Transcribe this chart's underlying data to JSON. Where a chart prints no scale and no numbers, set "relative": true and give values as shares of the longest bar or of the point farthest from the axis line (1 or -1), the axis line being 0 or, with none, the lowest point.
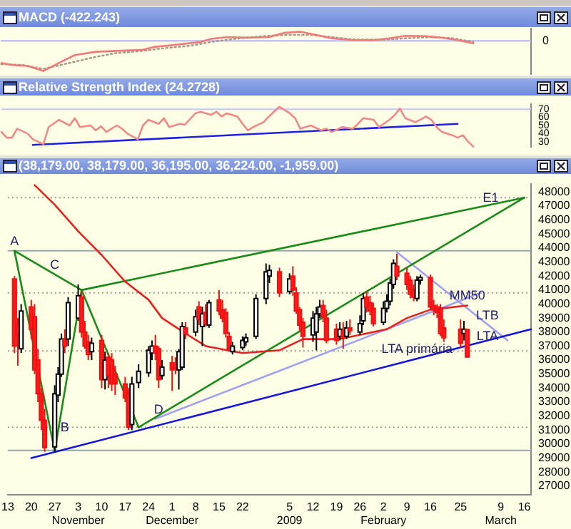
{
  "chart_data": [
    {
      "type": "line",
      "title": "MACD (-422.243)",
      "relative": true,
      "tick_labels": false,
      "categories": [
        null,
        null,
        null,
        null,
        null,
        null,
        null,
        null,
        null,
        null,
        null,
        null,
        null,
        null,
        null,
        null,
        null,
        null,
        null,
        null,
        null,
        null,
        null,
        null,
        null,
        null,
        null,
        null,
        null,
        null,
        null,
        null,
        null,
        null,
        null,
        null,
        null,
        null,
        null,
        null,
        null,
        null,
        null,
        null,
        null,
        null,
        null,
        null,
        null,
        null,
        null,
        null,
        null,
        null,
        null,
        null,
        null,
        null,
        null,
        null,
        null,
        null,
        null,
        null,
        null,
        null,
        null,
        null,
        null,
        null,
        null,
        null,
        null,
        null,
        null,
        null,
        null,
        null,
        null,
        null,
        null,
        null,
        null,
        null,
        null,
        null,
        null,
        null,
        null,
        null,
        null,
        null,
        null,
        null,
        null,
        null,
        null,
        null,
        null,
        null,
        null,
        null
      ],
      "ref_lines": [
        {
          "axis": "y",
          "value": 0,
          "label": "0",
          "color": "#c4c4ec"
        }
      ],
      "series": [
        {
          "color": "#f07a7a",
          "values": [
            -0.73,
            null,
            -0.8,
            null,
            null,
            -0.83,
            null,
            null,
            -1,
            null,
            null,
            -0.73,
            null,
            null,
            -0.47,
            null,
            null,
            null,
            -0.36,
            null,
            null,
            null,
            -0.33,
            null,
            null,
            null,
            null,
            -0.29,
            null,
            -0.2,
            null,
            null,
            null,
            -0.13,
            null,
            null,
            null,
            null,
            -0.03,
            null,
            0.07,
            null,
            null,
            0.13,
            null,
            null,
            null,
            0.11,
            null,
            null,
            null,
            0.13,
            null,
            null,
            0.27,
            null,
            null,
            0.31,
            null,
            null,
            0.2,
            null,
            null,
            0.09,
            null,
            null,
            null,
            0.03,
            null,
            null,
            null,
            0.03,
            null,
            null,
            0.09,
            null,
            null,
            0.17,
            null,
            null,
            null,
            0.16,
            null,
            null,
            0.11,
            null,
            null,
            0.03,
            null,
            null,
            -0.08,
            null,
            null,
            null,
            null,
            null,
            null,
            null,
            null,
            null,
            null,
            null
          ]
        },
        {
          "color": "#a89a88",
          "line_style": "dotted",
          "values": [
            -0.77,
            null,
            null,
            null,
            -0.8,
            null,
            null,
            null,
            -0.93,
            null,
            null,
            null,
            null,
            -0.73,
            null,
            null,
            null,
            null,
            -0.53,
            null,
            null,
            null,
            -0.4,
            null,
            null,
            null,
            null,
            -0.33,
            null,
            null,
            null,
            -0.24,
            null,
            null,
            null,
            null,
            -0.16,
            null,
            null,
            null,
            -0.03,
            null,
            null,
            null,
            null,
            0.08,
            null,
            null,
            null,
            null,
            0.16,
            null,
            null,
            null,
            0.2,
            null,
            null,
            null,
            null,
            0.2,
            null,
            null,
            null,
            0.13,
            null,
            null,
            null,
            0.05,
            null,
            null,
            null,
            null,
            null,
            0.04,
            null,
            null,
            null,
            0.09,
            null,
            null,
            null,
            null,
            0.13,
            null,
            null,
            null,
            0.09,
            null,
            null,
            null,
            -0.03,
            null,
            null,
            null,
            null,
            null,
            null,
            null,
            null,
            null,
            null,
            null
          ]
        }
      ]
    },
    {
      "type": "line",
      "title": "Relative Strength Index (24.2728)",
      "tick_labels": "y",
      "ylim": [
        24,
        76
      ],
      "yticks": [
        30,
        40,
        50,
        60,
        70
      ],
      "categories": [
        null,
        null,
        null,
        null,
        null,
        null,
        null,
        null,
        null,
        null,
        null,
        null,
        null,
        null,
        null,
        null,
        null,
        null,
        null,
        null,
        null,
        null,
        null,
        null,
        null,
        null,
        null,
        null,
        null,
        null,
        null,
        null,
        null,
        null,
        null,
        null,
        null,
        null,
        null,
        null,
        null,
        null,
        null,
        null,
        null,
        null,
        null,
        null,
        null,
        null,
        null,
        null,
        null,
        null,
        null,
        null,
        null,
        null,
        null,
        null,
        null,
        null,
        null,
        null,
        null,
        null,
        null,
        null,
        null,
        null,
        null,
        null,
        null,
        null,
        null,
        null,
        null,
        null,
        null,
        null,
        null,
        null,
        null,
        null,
        null,
        null,
        null,
        null,
        null,
        null,
        null,
        null,
        null,
        null,
        null,
        null,
        null,
        null,
        null,
        null,
        null,
        null
      ],
      "ref_lines": [
        {
          "axis": "y",
          "value": 70,
          "color": "#c4c4ec"
        }
      ],
      "series": [
        {
          "color": "#f08888",
          "values": [
            42,
            35,
            35,
            46,
            null,
            40,
            33,
            null,
            27,
            48,
            null,
            57,
            null,
            50,
            59,
            48,
            null,
            50,
            44,
            49,
            42,
            null,
            50,
            46,
            40,
            null,
            33,
            50,
            57,
            null,
            52,
            59,
            48,
            null,
            52,
            51,
            null,
            65,
            67,
            null,
            63,
            67,
            61,
            65,
            null,
            61,
            52,
            44,
            48,
            null,
            54,
            61,
            null,
            73,
            null,
            65,
            59,
            46,
            null,
            50,
            null,
            44,
            46,
            42,
            null,
            48,
            null,
            46,
            52,
            59,
            null,
            57,
            48,
            null,
            57,
            63,
            71,
            59,
            null,
            54,
            null,
            61,
            57,
            48,
            42,
            null,
            38,
            35,
            38,
            30,
            24,
            null,
            null,
            null,
            null,
            null,
            null,
            null,
            null,
            null,
            null,
            null
          ]
        },
        {
          "color": "#2020e0",
          "values": [
            null,
            null,
            null,
            null,
            null,
            null,
            26,
            null,
            null,
            null,
            null,
            null,
            null,
            null,
            null,
            null,
            null,
            null,
            null,
            null,
            null,
            null,
            null,
            null,
            null,
            null,
            null,
            null,
            null,
            null,
            null,
            null,
            null,
            null,
            null,
            null,
            null,
            null,
            null,
            null,
            null,
            null,
            null,
            null,
            null,
            null,
            null,
            null,
            null,
            null,
            null,
            null,
            null,
            null,
            null,
            null,
            null,
            null,
            null,
            null,
            null,
            null,
            null,
            null,
            null,
            null,
            null,
            null,
            null,
            null,
            null,
            null,
            null,
            null,
            null,
            null,
            null,
            null,
            null,
            null,
            null,
            null,
            null,
            null,
            null,
            null,
            null,
            52,
            null,
            null,
            null,
            null,
            null,
            null,
            null,
            null,
            null,
            null,
            null,
            null,
            null,
            null
          ]
        }
      ]
    },
    {
      "type": "candlestick",
      "title": "(38,179.00, 38,179.00, 36,195.00, 36,224.00, -1,959.00)",
      "xlim": [
        "2008-10-13",
        "2009-03-18"
      ],
      "ylim": [
        26400,
        48600
      ],
      "xticks": [
        {
          "value": "2008-10-13",
          "label": "13"
        },
        {
          "value": "2008-10-20",
          "label": "20"
        },
        {
          "value": "2008-10-27",
          "label": "27"
        },
        {
          "value": "2008-11-03",
          "label": "3\nNovember"
        },
        {
          "value": "2008-11-10",
          "label": "10"
        },
        {
          "value": "2008-11-17",
          "label": "17"
        },
        {
          "value": "2008-11-24",
          "label": "24"
        },
        {
          "value": "2008-12-01",
          "label": "1\nDecember"
        },
        {
          "value": "2008-12-08",
          "label": "8"
        },
        {
          "value": "2008-12-15",
          "label": "15"
        },
        {
          "value": "2008-12-22",
          "label": "22"
        },
        {
          "value": "2009-01-05",
          "label": "5\n2009"
        },
        {
          "value": "2009-01-12",
          "label": "12"
        },
        {
          "value": "2009-01-19",
          "label": "19"
        },
        {
          "value": "2009-01-26",
          "label": "26"
        },
        {
          "value": "2009-02-02",
          "label": "2\nFebruary"
        },
        {
          "value": "2009-02-09",
          "label": "9"
        },
        {
          "value": "2009-02-16",
          "label": "16"
        },
        {
          "value": "2009-02-25",
          "label": "25"
        },
        {
          "value": "2009-03-09",
          "label": "9\nMarch"
        },
        {
          "value": "2009-03-16",
          "label": "16"
        }
      ],
      "yticks": [
        27000,
        28000,
        29000,
        30000,
        31000,
        32000,
        33000,
        34000,
        35000,
        36000,
        37000,
        38000,
        39000,
        40000,
        41000,
        42000,
        43000,
        44000,
        45000,
        46000,
        47000,
        48000
      ],
      "x": [
        "2008-10-15",
        "2008-10-16",
        "2008-10-17",
        "2008-10-20",
        "2008-10-21",
        "2008-10-22",
        "2008-10-23",
        "2008-10-24",
        "2008-10-27",
        "2008-10-28",
        "2008-10-29",
        "2008-10-30",
        "2008-10-31",
        "2008-11-03",
        "2008-11-04",
        "2008-11-05",
        "2008-11-06",
        "2008-11-07",
        "2008-11-10",
        "2008-11-11",
        "2008-11-12",
        "2008-11-13",
        "2008-11-14",
        "2008-11-17",
        "2008-11-18",
        "2008-11-19",
        "2008-11-21",
        "2008-11-24",
        "2008-11-25",
        "2008-11-26",
        "2008-11-27",
        "2008-11-28",
        "2008-12-01",
        "2008-12-02",
        "2008-12-03",
        "2008-12-04",
        "2008-12-05",
        "2008-12-08",
        "2008-12-09",
        "2008-12-10",
        "2008-12-11",
        "2008-12-12",
        "2008-12-15",
        "2008-12-16",
        "2008-12-17",
        "2008-12-18",
        "2008-12-19",
        "2008-12-22",
        "2008-12-23",
        "2008-12-26",
        "2008-12-29",
        "2008-12-30",
        "2009-01-02",
        "2009-01-05",
        "2009-01-06",
        "2009-01-07",
        "2009-01-08",
        "2009-01-09",
        "2009-01-12",
        "2009-01-13",
        "2009-01-14",
        "2009-01-15",
        "2009-01-16",
        "2009-01-19",
        "2009-01-20",
        "2009-01-21",
        "2009-01-22",
        "2009-01-23",
        "2009-01-26",
        "2009-01-27",
        "2009-01-28",
        "2009-01-29",
        "2009-01-30",
        "2009-02-02",
        "2009-02-03",
        "2009-02-04",
        "2009-02-05",
        "2009-02-06",
        "2009-02-09",
        "2009-02-10",
        "2009-02-11",
        "2009-02-12",
        "2009-02-13",
        "2009-02-16",
        "2009-02-17",
        "2009-02-18",
        "2009-02-19",
        "2009-02-20",
        "2009-02-25",
        "2009-02-26",
        "2009-02-27"
      ],
      "ohlc": [
        [
          41800,
          42000,
          36500,
          37000
        ],
        [
          38500,
          39000,
          35600,
          37800
        ],
        [
          36800,
          40000,
          36500,
          39500
        ],
        [
          39800,
          40300,
          37500,
          38200
        ],
        [
          39100,
          40000,
          35000,
          35300
        ],
        [
          36000,
          36800,
          33000,
          33600
        ],
        [
          33600,
          34000,
          31000,
          31700
        ],
        [
          31700,
          32500,
          29450,
          29750
        ],
        [
          29800,
          34200,
          29450,
          33600
        ],
        [
          33500,
          35500,
          33000,
          35000
        ],
        [
          35000,
          37900,
          34800,
          37500
        ],
        [
          37500,
          38200,
          36500,
          37000
        ],
        [
          37500,
          40500,
          37000,
          40100
        ],
        [
          39000,
          41400,
          38800,
          40600
        ],
        [
          40500,
          40900,
          37600,
          38000
        ],
        [
          38000,
          38800,
          36800,
          37000
        ],
        [
          37300,
          37800,
          36000,
          36400
        ],
        [
          36600,
          37600,
          36000,
          37200
        ],
        [
          37400,
          37800,
          34000,
          34600
        ],
        [
          34600,
          36600,
          33900,
          36000
        ],
        [
          36200,
          36500,
          34000,
          34900
        ],
        [
          36000,
          36500,
          33800,
          34300
        ],
        [
          35000,
          35600,
          33500,
          34300
        ],
        [
          34300,
          34800,
          33000,
          33300
        ],
        [
          33600,
          34000,
          31000,
          31200
        ],
        [
          31400,
          34800,
          31000,
          34300
        ],
        [
          34400,
          35700,
          34000,
          35200
        ],
        [
          35100,
          37000,
          34800,
          36700
        ],
        [
          36500,
          37400,
          36000,
          37000
        ],
        [
          37000,
          37800,
          36000,
          36500
        ],
        [
          36800,
          37000,
          34000,
          34600
        ],
        [
          34900,
          36000,
          34600,
          35500
        ],
        [
          35800,
          36300,
          33800,
          35300
        ],
        [
          35700,
          36200,
          35000,
          35400
        ],
        [
          35300,
          36800,
          33900,
          36600
        ],
        [
          35500,
          38700,
          35300,
          38400
        ],
        [
          38300,
          38700,
          37500,
          37900
        ],
        [
          38000,
          39600,
          37700,
          39100
        ],
        [
          39800,
          40200,
          38500,
          38900
        ],
        [
          38400,
          39800,
          37000,
          39300
        ],
        [
          39400,
          40000,
          38400,
          38600
        ],
        [
          38500,
          40300,
          38300,
          40100
        ],
        [
          40300,
          41000,
          39200,
          39500
        ],
        [
          39600,
          40300,
          38700,
          39000
        ],
        [
          39400,
          39700,
          37600,
          37900
        ],
        [
          37700,
          38000,
          36600,
          36800
        ],
        [
          36600,
          37300,
          36400,
          37000
        ],
        [
          36900,
          37700,
          36700,
          37400
        ],
        [
          37300,
          37900,
          37000,
          37600
        ],
        [
          37700,
          40700,
          37500,
          40400
        ],
        [
          40400,
          42900,
          40000,
          42300
        ],
        [
          42000,
          42800,
          41500,
          42400
        ],
        [
          42300,
          42600,
          40500,
          40800
        ],
        [
          40900,
          42200,
          40700,
          41800
        ],
        [
          42000,
          42700,
          40600,
          41000
        ],
        [
          40800,
          41200,
          39300,
          39500
        ],
        [
          39600,
          39800,
          38100,
          38500
        ],
        [
          38700,
          39000,
          36900,
          37700
        ],
        [
          37800,
          39500,
          37300,
          39000
        ],
        [
          38000,
          39800,
          36700,
          39300
        ],
        [
          39300,
          40300,
          39000,
          39800
        ],
        [
          39900,
          40300,
          38700,
          39100
        ],
        [
          39000,
          39600,
          37200,
          37400
        ],
        [
          38200,
          38600,
          37100,
          37400
        ],
        [
          37700,
          38700,
          37400,
          38200
        ],
        [
          38100,
          38700,
          36800,
          37600
        ],
        [
          37700,
          38800,
          37500,
          38300
        ],
        [
          38300,
          38900,
          37800,
          38100
        ],
        [
          38000,
          39200,
          37800,
          38600
        ],
        [
          38800,
          40800,
          38500,
          40400
        ],
        [
          40500,
          40900,
          39400,
          39800
        ],
        [
          40100,
          40600,
          39200,
          39500
        ],
        [
          39700,
          40100,
          38400,
          38600
        ],
        [
          38700,
          40200,
          38500,
          39700
        ],
        [
          39700,
          40700,
          39400,
          40200
        ],
        [
          40200,
          41800,
          39900,
          41500
        ],
        [
          41400,
          43200,
          41100,
          42900
        ],
        [
          42700,
          43600,
          41700,
          42000
        ],
        [
          42200,
          42600,
          41000,
          41400
        ],
        [
          41700,
          42000,
          40400,
          40700
        ],
        [
          41000,
          41400,
          40200,
          40500
        ],
        [
          40400,
          42000,
          40200,
          41700
        ],
        [
          41700,
          42100,
          41400,
          41900
        ],
        [
          41900,
          42100,
          39600,
          39800
        ],
        [
          39900,
          40300,
          39200,
          39600
        ],
        [
          39800,
          40000,
          39000,
          39400
        ],
        [
          39700,
          40000,
          37700,
          37900
        ],
        [
          38300,
          38900,
          37300,
          37600
        ],
        [
          38200,
          38900,
          36900,
          37200
        ],
        [
          37900,
          38800,
          37400,
          38200
        ],
        [
          38179,
          38179,
          36195,
          36224
        ]
      ],
      "ref_lines": [
        {
          "axis": "y",
          "value": 47600,
          "color": "#9a9a9a",
          "line_style": "dotted"
        },
        {
          "axis": "y",
          "value": 43800,
          "color": "#90a8b0",
          "line_style": "solid"
        },
        {
          "axis": "y",
          "value": 40800,
          "color": "#9a9a9a",
          "line_style": "dotted"
        },
        {
          "axis": "y",
          "value": 36650,
          "color": "#9a9a9a",
          "line_style": "dotted"
        },
        {
          "axis": "y",
          "value": 31200,
          "color": "#9a9a9a",
          "line_style": "dotted"
        },
        {
          "axis": "y",
          "value": 29550,
          "color": "#90a8b0",
          "line_style": "solid"
        }
      ],
      "series": [
        {
          "type": "line",
          "color": "#e82020",
          "x": [
            "2008-10-21",
            "2008-10-27",
            "2008-11-03",
            "2008-11-10",
            "2008-11-17",
            "2008-11-24",
            "2008-11-28",
            "2008-12-05",
            "2008-12-11",
            "2008-12-22",
            "2009-01-02",
            "2009-01-09",
            "2009-01-20",
            "2009-02-03",
            "2009-02-09",
            "2009-02-16",
            "2009-02-27"
          ],
          "values": [
            48500,
            47100,
            45200,
            43500,
            41600,
            40300,
            39000,
            37900,
            37000,
            36500,
            36700,
            37500,
            37500,
            38200,
            39000,
            39600,
            39900
          ]
        },
        {
          "type": "line",
          "color": "#1a8a1a",
          "x": [
            "2008-10-15",
            "2008-10-27",
            "2008-11-04",
            "2008-11-21"
          ],
          "values": [
            43800,
            29500,
            41000,
            31200
          ]
        },
        {
          "type": "line",
          "color": "#1a8a1a",
          "x": [
            "2008-10-15",
            "2008-11-04"
          ],
          "values": [
            43800,
            41000
          ]
        },
        {
          "type": "line",
          "color": "#1a8a1a",
          "x": [
            "2008-11-04",
            "2009-03-16"
          ],
          "values": [
            41000,
            47600
          ]
        },
        {
          "type": "line",
          "color": "#1a8a1a",
          "x": [
            "2008-11-21",
            "2009-03-16"
          ],
          "values": [
            31200,
            47600
          ]
        },
        {
          "type": "line",
          "color": "#1414e0",
          "x": [
            "2008-10-20",
            "2009-03-18"
          ],
          "values": [
            29000,
            38200
          ]
        },
        {
          "type": "line",
          "color": "#a0a0f0",
          "x": [
            "2008-11-26",
            "2009-03-03"
          ],
          "values": [
            31800,
            40800
          ]
        },
        {
          "type": "line",
          "color": "#a0a0f0",
          "x": [
            "2009-02-06",
            "2009-03-11"
          ],
          "values": [
            43700,
            37400
          ]
        }
      ],
      "annotations": [
        {
          "text": "A",
          "x": "2008-10-15",
          "y": 43800
        },
        {
          "text": "B",
          "x": "2008-10-30",
          "y": 30500
        },
        {
          "text": "C",
          "x": "2008-10-27",
          "y": 42100
        },
        {
          "text": "D",
          "x": "2008-11-27",
          "y": 31800
        },
        {
          "text": "E1",
          "x": "2009-03-06",
          "y": 46900
        },
        {
          "text": "MM50",
          "x": "2009-02-27",
          "y": 39900
        },
        {
          "text": "LTB",
          "x": "2009-03-05",
          "y": 38500
        },
        {
          "text": "LTA",
          "x": "2009-03-05",
          "y": 37000
        },
        {
          "text": "LTA primária",
          "x": "2009-02-12",
          "y": 36100
        }
      ]
    }
  ]
}
